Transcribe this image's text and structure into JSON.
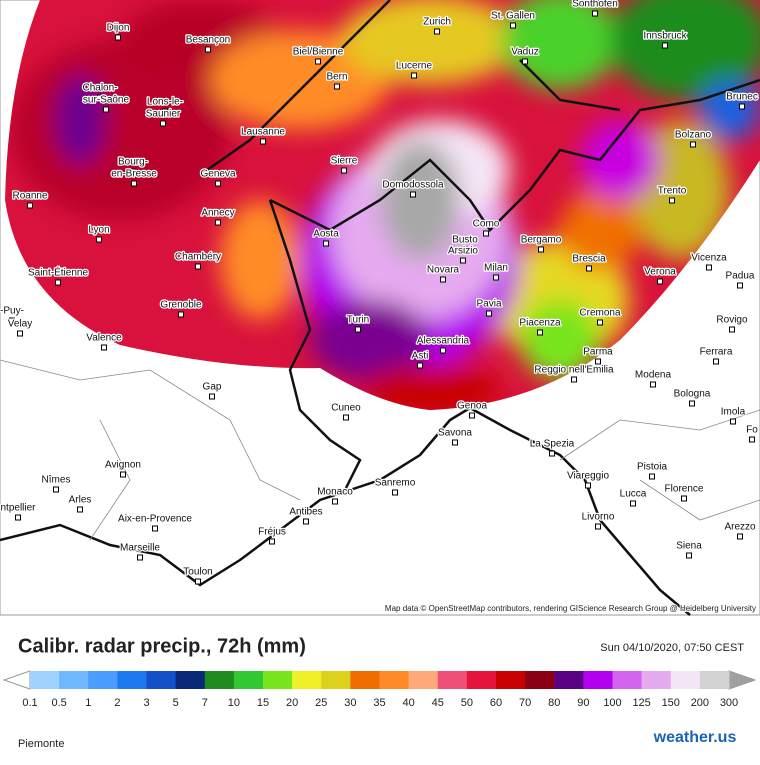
{
  "header": {
    "title": "Calibr. radar precip., 72h (mm)",
    "date": "Sun 04/10/2020, 07:50 CEST"
  },
  "map": {
    "attribution": "Map data © OpenStreetMap contributors, rendering GIScience Research Group @ Heidelberg University",
    "cities": [
      "Sonthofen",
      "Zurich",
      "St. Gallen",
      "Dijon",
      "Besançon",
      "Innsbruck",
      "Biel/Bienne",
      "Vaduz",
      "Lucerne",
      "Bern",
      "Chalon-",
      "sur-Saône",
      "Lons-le-",
      "Saunier",
      "Brunec",
      "Lausanne",
      "Bolzano",
      "Sierre",
      "Bourg-",
      "en-Bresse",
      "Geneva",
      "Domodossola",
      "Roanne",
      "Trento",
      "Annecy",
      "Como",
      "Busto",
      "Arsizio",
      "Aosta",
      "Lyon",
      "Bergamo",
      "Chambéry",
      "Vicenza",
      "Brescia",
      "Novara",
      "Milan",
      "Verona",
      "Saint-Étienne",
      "Padua",
      "Pavia",
      "Grenoble",
      "Cremona",
      "-Puy-",
      "Velay",
      "Piacenza",
      "Rovigo",
      "Turin",
      "Valence",
      "Alessandria",
      "Asti",
      "Parma",
      "Ferrara",
      "Reggio nell'Emilia",
      "Modena",
      "Gap",
      "Bologna",
      "Cuneo",
      "Genoa",
      "Imola",
      "Savona",
      "Fo",
      "La Spezia",
      "Avignon",
      "Pistoia",
      "Nîmes",
      "Sanremo",
      "Viareggio",
      "Lucca",
      "Florence",
      "Monaco",
      "Arles",
      "ntpellier",
      "Antibes",
      "Livorno",
      "Aix-en-Provence",
      "Arezzo",
      "Fréjus",
      "Siena",
      "Marseille",
      "Toulon"
    ]
  },
  "legend": {
    "ticks": [
      0.1,
      0.5,
      1,
      2,
      3,
      5,
      7,
      10,
      15,
      20,
      25,
      30,
      35,
      40,
      45,
      50,
      60,
      70,
      80,
      90,
      100,
      125,
      150,
      200,
      300
    ],
    "colors": [
      "#a0d2ff",
      "#6eb8ff",
      "#4a9cff",
      "#1e78f0",
      "#1450c8",
      "#0a2878",
      "#1e8c1e",
      "#32c832",
      "#78e61e",
      "#f0f028",
      "#dcd21e",
      "#f06e00",
      "#ff8c28",
      "#ffa878",
      "#f05078",
      "#e6143c",
      "#c80000",
      "#8c0014",
      "#5a0082",
      "#b400f0",
      "#d264f0",
      "#e6aaf0",
      "#f5e6f5",
      "#d2d2d2"
    ],
    "under_color": "#ffffff",
    "over_color": "#a0a0a0"
  },
  "footer": {
    "region": "Piemonte",
    "logo": "weather.us"
  }
}
